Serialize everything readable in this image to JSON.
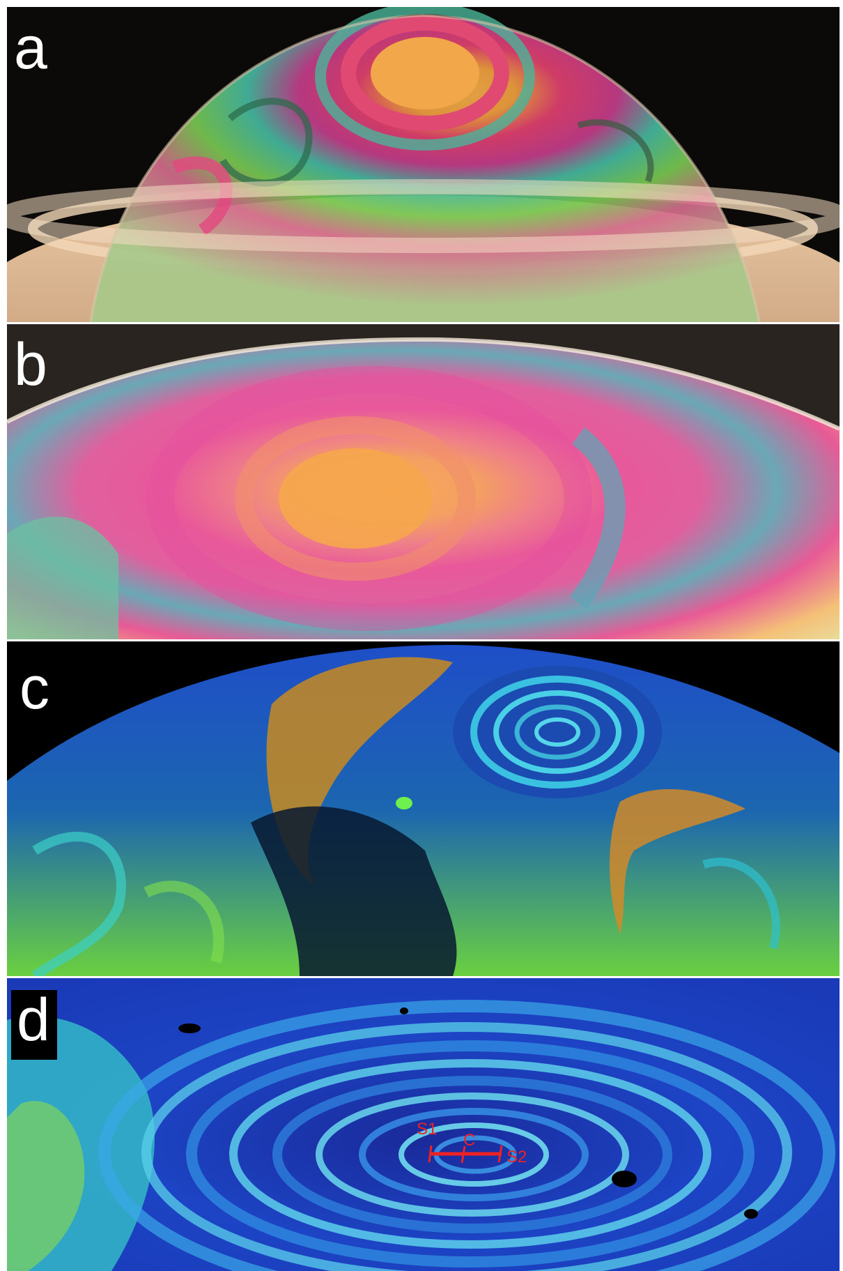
{
  "panels": [
    {
      "id": "a",
      "label": "a"
    },
    {
      "id": "b",
      "label": "b"
    },
    {
      "id": "c",
      "label": "c"
    },
    {
      "id": "d",
      "label": "d"
    }
  ],
  "annotations": {
    "s1": "S1",
    "c": "C",
    "s2": "S2"
  },
  "colors": {
    "annotation": "#ee2222",
    "label_text": "#ffffff",
    "background": "#000000"
  }
}
